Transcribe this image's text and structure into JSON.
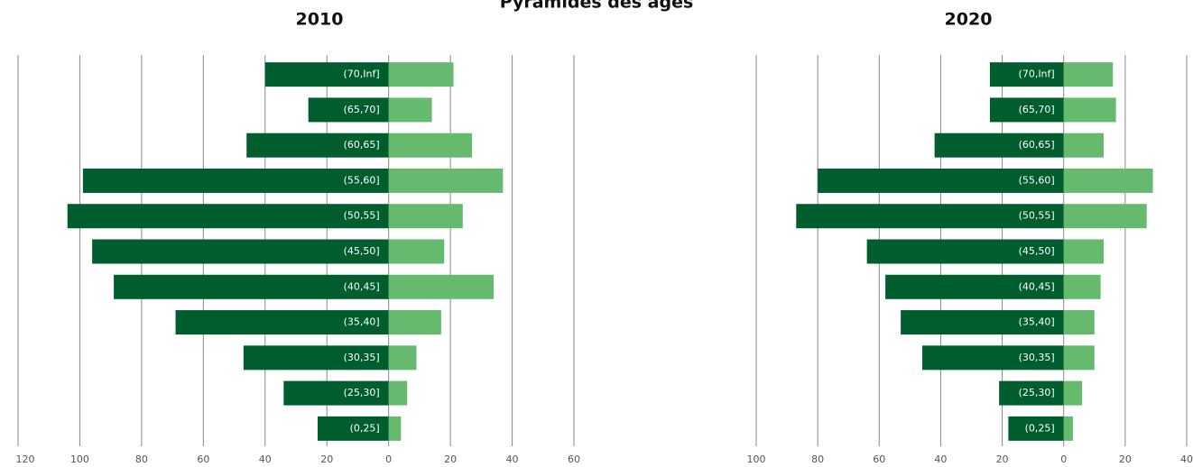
{
  "title": "Pyramides des âges",
  "chart_data": [
    {
      "type": "pyramid",
      "title": "2010",
      "categories": [
        "(70,Inf]",
        "(65,70]",
        "(60,65]",
        "(55,60]",
        "(50,55]",
        "(45,50]",
        "(40,45]",
        "(35,40]",
        "(30,35]",
        "(25,30]",
        "(0,25]"
      ],
      "series": [
        {
          "color": "#005e2e",
          "values": [
            -40,
            -26,
            -46,
            -99,
            -104,
            -96,
            -89,
            -69,
            -47,
            -34,
            -23
          ]
        },
        {
          "color": "#66ba6e",
          "values": [
            21,
            14,
            27,
            37,
            24,
            18,
            34,
            17,
            9,
            6,
            4
          ]
        }
      ],
      "xlim": [
        -120,
        60
      ],
      "xticks": [
        {
          "value": -120,
          "label": "120"
        },
        {
          "value": -100,
          "label": "100"
        },
        {
          "value": -80,
          "label": "80"
        },
        {
          "value": -60,
          "label": "60"
        },
        {
          "value": -40,
          "label": "40"
        },
        {
          "value": -20,
          "label": "20"
        },
        0,
        20,
        40,
        60
      ],
      "grid": true
    },
    {
      "type": "pyramid",
      "title": "2020",
      "categories": [
        "(70,Inf]",
        "(65,70]",
        "(60,65]",
        "(55,60]",
        "(50,55]",
        "(45,50]",
        "(40,45]",
        "(35,40]",
        "(30,35]",
        "(25,30]",
        "(0,25]"
      ],
      "series": [
        {
          "color": "#005e2e",
          "values": [
            -24,
            -24,
            -42,
            -80,
            -87,
            -64,
            -58,
            -53,
            -46,
            -21,
            -18
          ]
        },
        {
          "color": "#66ba6e",
          "values": [
            16,
            17,
            13,
            29,
            27,
            13,
            12,
            10,
            10,
            6,
            3
          ]
        }
      ],
      "xlim": [
        -100,
        40
      ],
      "xticks": [
        {
          "value": -100,
          "label": "100"
        },
        {
          "value": -80,
          "label": "80"
        },
        {
          "value": -60,
          "label": "60"
        },
        {
          "value": -40,
          "label": "40"
        },
        {
          "value": -20,
          "label": "20"
        },
        0,
        20,
        40
      ],
      "grid": true
    }
  ]
}
